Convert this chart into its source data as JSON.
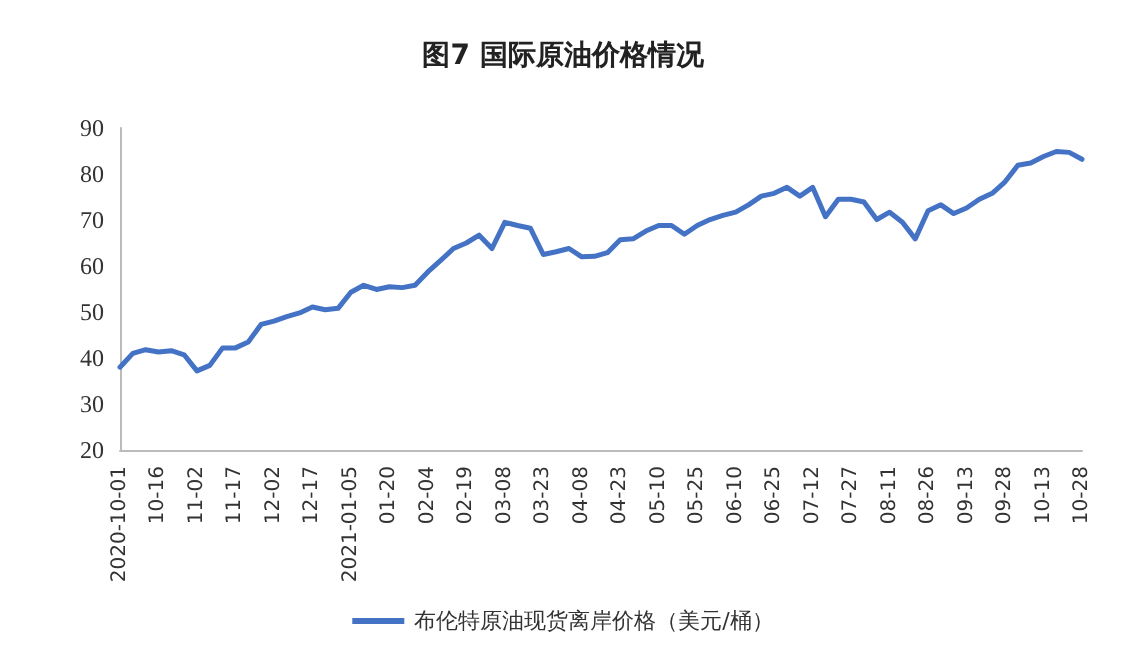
{
  "chart_data": {
    "type": "line",
    "title": "图7 国际原油价格情况",
    "categories": [
      "2020-10-01",
      null,
      null,
      "10-16",
      null,
      null,
      "11-02",
      null,
      null,
      "11-17",
      null,
      null,
      "12-02",
      null,
      null,
      "12-17",
      null,
      null,
      "2021-01-05",
      null,
      null,
      "01-20",
      null,
      null,
      "02-04",
      null,
      null,
      "02-19",
      null,
      null,
      "03-08",
      null,
      null,
      "03-23",
      null,
      null,
      "04-08",
      null,
      null,
      "04-23",
      null,
      null,
      "05-10",
      null,
      null,
      "05-25",
      null,
      null,
      "06-10",
      null,
      null,
      "06-25",
      null,
      null,
      "07-12",
      null,
      null,
      "07-27",
      null,
      null,
      "08-11",
      null,
      null,
      "08-26",
      null,
      null,
      "09-13",
      null,
      null,
      "09-28",
      null,
      null,
      "10-13",
      null,
      null,
      "10-28"
    ],
    "series": [
      {
        "name": "布伦特原油现货离岸价格（美元/桶）",
        "color": "#4472c4",
        "values": [
          38,
          41,
          41.8,
          41.3,
          41.6,
          40.7,
          37.2,
          38.4,
          42.2,
          42.2,
          43.5,
          47.3,
          48,
          49,
          49.8,
          51.1,
          50.5,
          50.8,
          54.3,
          55.8,
          54.9,
          55.5,
          55.3,
          55.8,
          58.7,
          61.2,
          63.8,
          65,
          66.7,
          63.8,
          69.5,
          68.8,
          68.2,
          62.5,
          63.1,
          63.8,
          62,
          62.1,
          62.9,
          65.7,
          65.9,
          67.6,
          68.8,
          68.8,
          66.9,
          68.8,
          70.1,
          71,
          71.7,
          73.3,
          75.2,
          75.8,
          77.1,
          75.2,
          77.1,
          70.7,
          74.5,
          74.5,
          73.9,
          70.1,
          71.7,
          69.5,
          65.9,
          72,
          73.3,
          71.4,
          72.6,
          74.5,
          75.8,
          78.3,
          81.9,
          82.4,
          83.8,
          84.9,
          84.7,
          83.2
        ]
      }
    ],
    "ylim": [
      20,
      90
    ],
    "yticks": [
      20,
      30,
      40,
      50,
      60,
      70,
      80,
      90
    ],
    "grid": false,
    "legend": "bottom",
    "marker": "none",
    "line_style": "solid"
  }
}
